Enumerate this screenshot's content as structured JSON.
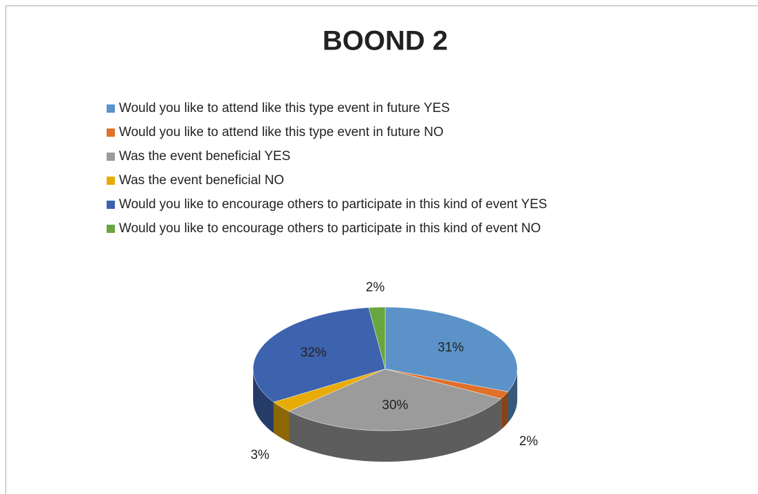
{
  "chart_data": {
    "type": "pie",
    "title": "BOOND 2",
    "categories": [
      "Would you like to attend like this type event in  future YES",
      "Would you like to attend like this type event in  future  NO",
      "Was the event beneficial  YES",
      "Was the event beneficial  NO",
      "Would you like to encourage others to participate in this kind of event YES",
      "Would you like to encourage others to participate in this kind of event NO"
    ],
    "values": [
      31,
      2,
      30,
      3,
      32,
      2
    ],
    "value_labels": [
      "31%",
      "2%",
      "30%",
      "3%",
      "32%",
      "2%"
    ],
    "colors": [
      "#5b93c9",
      "#e0702a",
      "#9b9b9b",
      "#e8ac08",
      "#3d62ae",
      "#6aa63f"
    ],
    "legend": "top"
  }
}
